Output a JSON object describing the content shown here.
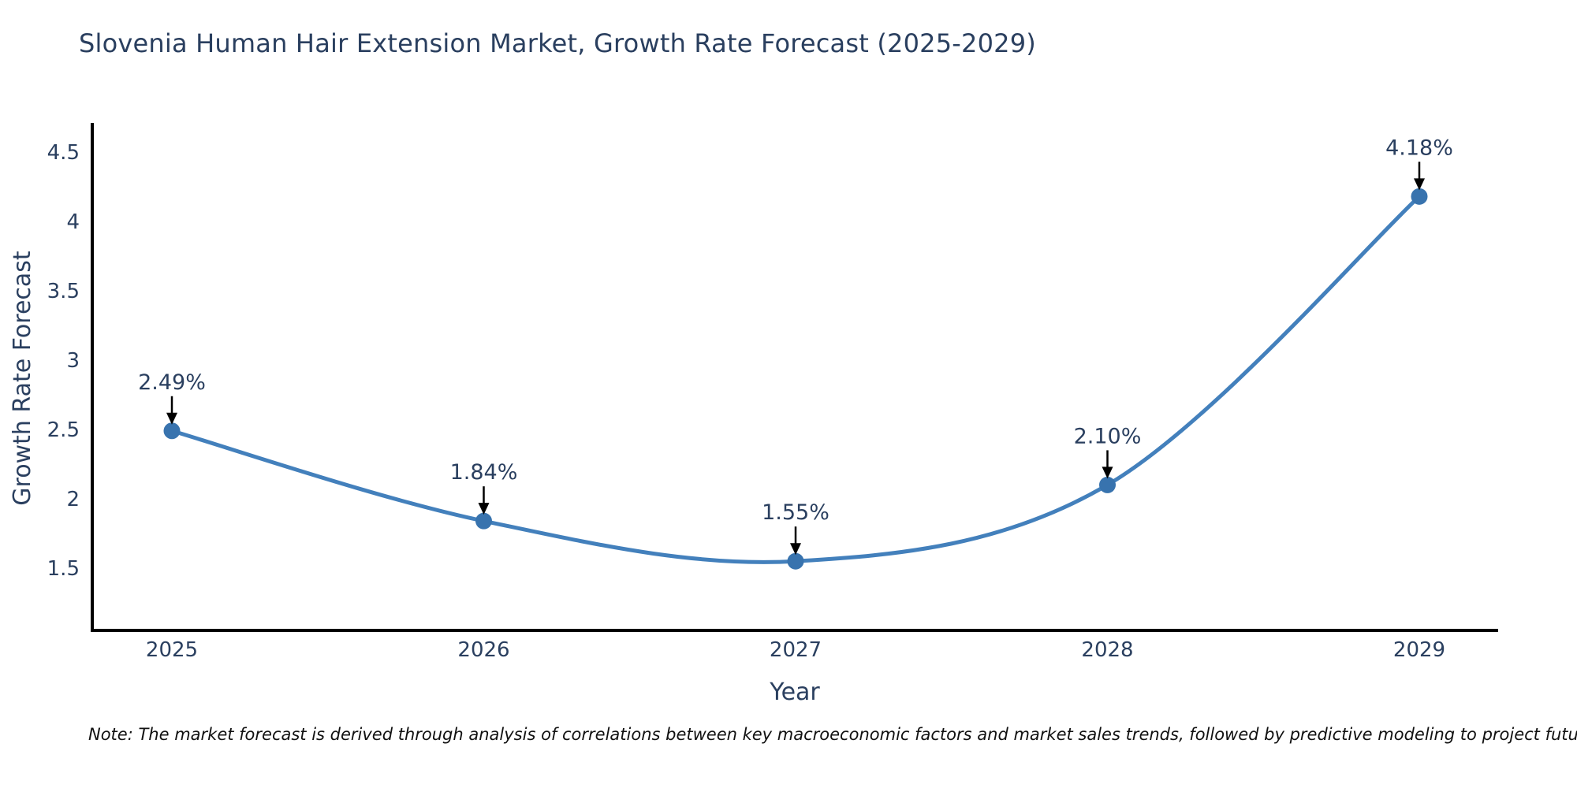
{
  "title": "Slovenia Human Hair Extension Market, Growth Rate Forecast (2025-2029)",
  "note": "Note: The market forecast is derived through analysis of correlations between key macroeconomic factors and market sales trends, followed by predictive modeling to project future sales",
  "chart_data": {
    "type": "line",
    "line_shape": "spline",
    "title": "Slovenia Human Hair Extension Market, Growth Rate Forecast (2025-2029)",
    "xlabel": "Year",
    "ylabel": "Growth Rate Forecast",
    "categories": [
      "2025",
      "2026",
      "2027",
      "2028",
      "2029"
    ],
    "values": [
      2.49,
      1.84,
      1.55,
      2.1,
      4.18
    ],
    "point_labels": [
      "2.49%",
      "1.84%",
      "1.55%",
      "2.10%",
      "4.18%"
    ],
    "yticks": [
      1.5,
      2,
      2.5,
      3,
      3.5,
      4,
      4.5
    ],
    "ylim": [
      1.05,
      4.69
    ],
    "grid": false,
    "legend": "none",
    "annotations": "black down-arrows from each percentage label to its data point",
    "colors": {
      "line": "#4380bc",
      "marker": "#3873ae",
      "axis": "#000000",
      "text": "#2a3f5f",
      "arrow": "#000000",
      "note_text": "#111111",
      "background": "#ffffff"
    }
  }
}
